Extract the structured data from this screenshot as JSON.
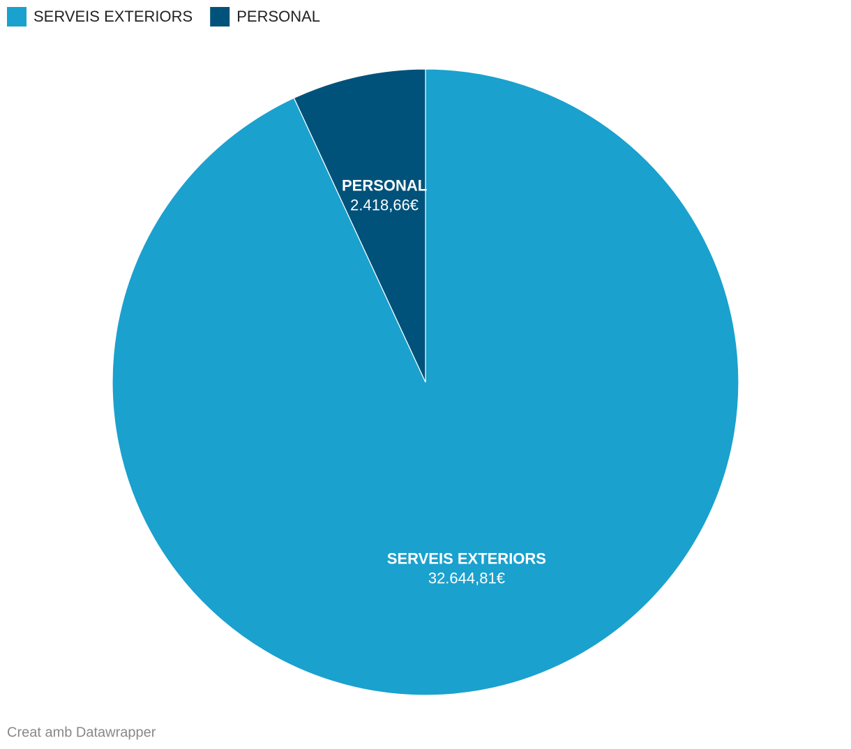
{
  "chart_data": {
    "type": "pie",
    "categories": [
      "SERVEIS EXTERIORS",
      "PERSONAL"
    ],
    "values": [
      32644.81,
      2418.66
    ],
    "value_labels": [
      "32.644,81€",
      "2.418,66€"
    ],
    "colors": [
      "#1aa1ce",
      "#00527a"
    ],
    "legend": "top-left",
    "credit": "Creat amb Datawrapper"
  }
}
